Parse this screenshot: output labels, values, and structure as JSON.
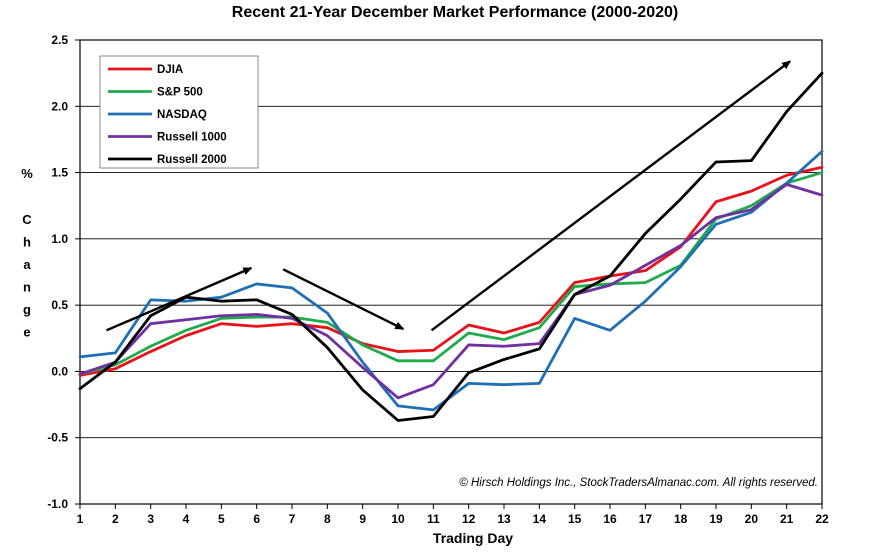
{
  "chart_data": {
    "type": "line",
    "title": "Recent 21-Year December Market Performance (2000-2020)",
    "xlabel": "Trading Day",
    "ylabel": "% Change",
    "x": [
      1,
      2,
      3,
      4,
      5,
      6,
      7,
      8,
      9,
      10,
      11,
      12,
      13,
      14,
      15,
      16,
      17,
      18,
      19,
      20,
      21,
      22
    ],
    "ylim": [
      -1.0,
      2.5
    ],
    "yticks": [
      "2.5",
      "2.0",
      "1.5",
      "1.0",
      "0.5",
      "0.0",
      "-0.5",
      "-1.0"
    ],
    "ytick_values": [
      2.5,
      2.0,
      1.5,
      1.0,
      0.5,
      0.0,
      -0.5,
      -1.0
    ],
    "grid": true,
    "legend_position": "top-left",
    "series": [
      {
        "name": "DJIA",
        "color": "#e8121b",
        "values": [
          -0.03,
          0.02,
          0.15,
          0.27,
          0.36,
          0.34,
          0.36,
          0.33,
          0.21,
          0.15,
          0.16,
          0.35,
          0.29,
          0.37,
          0.67,
          0.72,
          0.76,
          0.94,
          1.28,
          1.36,
          1.48,
          1.54
        ]
      },
      {
        "name": "S&P 500",
        "color": "#1faa4c",
        "values": [
          -0.02,
          0.05,
          0.19,
          0.31,
          0.4,
          0.41,
          0.41,
          0.37,
          0.2,
          0.08,
          0.08,
          0.29,
          0.24,
          0.33,
          0.64,
          0.66,
          0.67,
          0.8,
          1.15,
          1.25,
          1.42,
          1.5
        ]
      },
      {
        "name": "NASDAQ",
        "color": "#1f6fb5",
        "values": [
          0.11,
          0.14,
          0.54,
          0.53,
          0.56,
          0.66,
          0.63,
          0.44,
          0.07,
          -0.26,
          -0.29,
          -0.09,
          -0.1,
          -0.09,
          0.4,
          0.31,
          0.53,
          0.79,
          1.11,
          1.2,
          1.42,
          1.66
        ]
      },
      {
        "name": "Russell 1000",
        "color": "#7030a0",
        "values": [
          -0.02,
          0.07,
          0.36,
          0.39,
          0.42,
          0.43,
          0.4,
          0.27,
          0.03,
          -0.2,
          -0.1,
          0.2,
          0.19,
          0.21,
          0.58,
          0.65,
          0.8,
          0.95,
          1.16,
          1.22,
          1.41,
          1.33
        ]
      },
      {
        "name": "Russell 2000",
        "color": "#000000",
        "values": [
          -0.13,
          0.07,
          0.42,
          0.56,
          0.53,
          0.54,
          0.43,
          0.18,
          -0.14,
          -0.37,
          -0.34,
          -0.01,
          0.09,
          0.17,
          0.58,
          0.72,
          1.04,
          1.3,
          1.58,
          1.59,
          1.96,
          2.25
        ]
      }
    ],
    "annotations": [
      {
        "type": "arrow",
        "from": [
          1.75,
          0.31
        ],
        "to": [
          5.85,
          0.78
        ]
      },
      {
        "type": "arrow",
        "from": [
          6.75,
          0.77
        ],
        "to": [
          10.15,
          0.32
        ]
      },
      {
        "type": "arrow",
        "from": [
          10.95,
          0.31
        ],
        "to": [
          21.1,
          2.34
        ]
      }
    ],
    "copyright": "© Hirsch Holdings Inc., StockTradersAlmanac.com.  All rights reserved."
  }
}
